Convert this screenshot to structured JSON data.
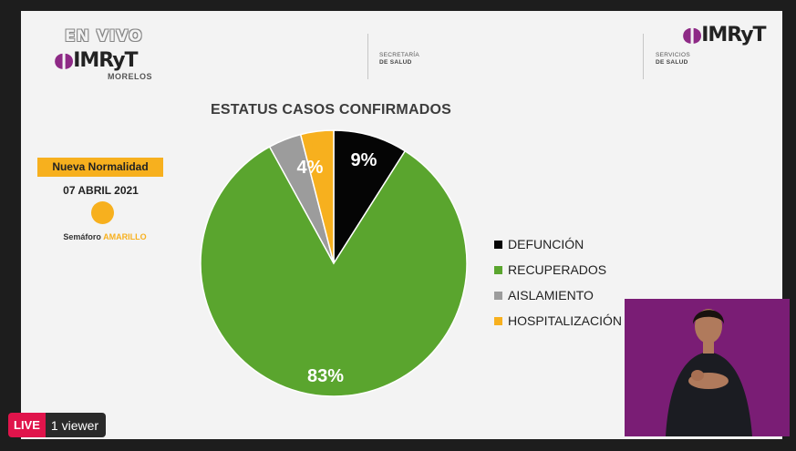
{
  "stream": {
    "live_label": "LIVE",
    "viewers": "1 viewer"
  },
  "header": {
    "en_vivo": "EN VIVO",
    "left_brand": "IMRyT",
    "left_sublabel": "MORELOS",
    "secretaria": "SECRETARÍA",
    "de_salud": "DE SALUD",
    "servicios": "SERVICIOS",
    "de_salud_2": "DE SALUD",
    "right_brand": "IMRyT"
  },
  "sidebar": {
    "badge": "Nueva Normalidad",
    "date": "07 ABRIL 2021",
    "semaforo_label": "Semáforo",
    "semaforo_value": "AMARILLO"
  },
  "colors": {
    "accent": "#f7b01e",
    "brand_purple": "#8e2a86",
    "live_red": "#e0144b",
    "signer_bg": "#7a1d75"
  },
  "chart_data": {
    "type": "pie",
    "title": "ESTATUS CASOS CONFIRMADOS",
    "slices": [
      {
        "label": "DEFUNCIÓN",
        "value": 9,
        "display": "9%",
        "color": "#050505"
      },
      {
        "label": "RECUPERADOS",
        "value": 83,
        "display": "83%",
        "color": "#5aa52e"
      },
      {
        "label": "AISLAMIENTO",
        "value": 4,
        "display": "4%",
        "color": "#9c9c9c"
      },
      {
        "label": "HOSPITALIZACIÓN",
        "value": 4,
        "display": "4%",
        "color": "#f7b01e"
      }
    ],
    "legend_position": "right"
  }
}
